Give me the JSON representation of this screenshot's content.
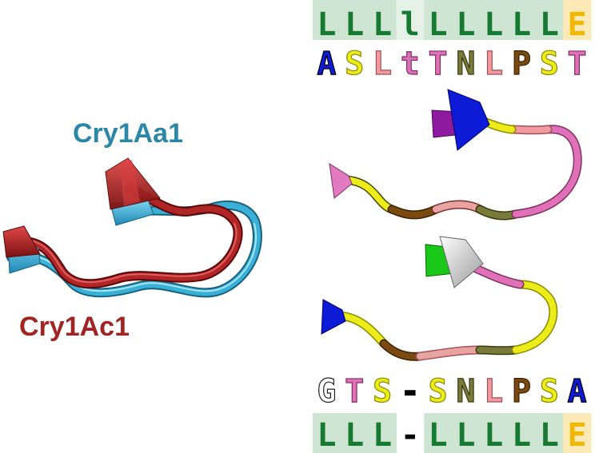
{
  "labels": {
    "structure_top": "Cry1Aa1",
    "structure_bottom": "Cry1Ac1"
  },
  "colors": {
    "cry1aa1": "#3ab0d6",
    "cry1ac1": "#b02525",
    "label_aa": "#2a87a6",
    "label_ac": "#a12424",
    "ss_bg": "#cfe5d3",
    "ss_bg_light": "#e6f2e8",
    "ss_bg_e": "#fbe9b8",
    "ss_text": "#167a30",
    "ss_text_e": "#f0b800"
  },
  "rows": {
    "ss_top": [
      {
        "ch": "L",
        "color": "#167a30",
        "bg": "#cfe5d3"
      },
      {
        "ch": "L",
        "color": "#167a30",
        "bg": "#cfe5d3"
      },
      {
        "ch": "L",
        "color": "#167a30",
        "bg": "#cfe5d3"
      },
      {
        "ch": "l",
        "color": "#167a30",
        "bg": "#e6f2e8"
      },
      {
        "ch": "L",
        "color": "#167a30",
        "bg": "#cfe5d3"
      },
      {
        "ch": "L",
        "color": "#167a30",
        "bg": "#cfe5d3"
      },
      {
        "ch": "L",
        "color": "#167a30",
        "bg": "#cfe5d3"
      },
      {
        "ch": "L",
        "color": "#167a30",
        "bg": "#cfe5d3"
      },
      {
        "ch": "L",
        "color": "#167a30",
        "bg": "#cfe5d3"
      },
      {
        "ch": "E",
        "color": "#f0b800",
        "bg": "#fbe9b8"
      }
    ],
    "seq_top": [
      {
        "ch": "A",
        "color": "#0d1ad6",
        "stroke": "#000000"
      },
      {
        "ch": "S",
        "color": "#ecec1a",
        "stroke": "#8a8a00"
      },
      {
        "ch": "L",
        "color": "#f39aa0",
        "stroke": "#a05058"
      },
      {
        "ch": "t",
        "color": "#d870b8",
        "stroke": "#803060"
      },
      {
        "ch": "T",
        "color": "#e070b8",
        "stroke": "#803060"
      },
      {
        "ch": "N",
        "color": "#7a7a3a",
        "stroke": "#3a3a10"
      },
      {
        "ch": "L",
        "color": "#f39aa0",
        "stroke": "#a05058"
      },
      {
        "ch": "P",
        "color": "#7a4a10",
        "stroke": "#3a2000"
      },
      {
        "ch": "S",
        "color": "#ecec1a",
        "stroke": "#8a8a00"
      },
      {
        "ch": "T",
        "color": "#e070b8",
        "stroke": "#803060"
      }
    ],
    "seq_bottom": [
      {
        "ch": "G",
        "color": "#ffffff",
        "stroke": "#222222"
      },
      {
        "ch": "T",
        "color": "#e070b8",
        "stroke": "#803060"
      },
      {
        "ch": "S",
        "color": "#ecec1a",
        "stroke": "#8a8a00"
      },
      {
        "ch": "-",
        "color": "#000000",
        "stroke": "#000000"
      },
      {
        "ch": "S",
        "color": "#ecec1a",
        "stroke": "#8a8a00"
      },
      {
        "ch": "N",
        "color": "#7a7a3a",
        "stroke": "#3a3a10"
      },
      {
        "ch": "L",
        "color": "#f39aa0",
        "stroke": "#a05058"
      },
      {
        "ch": "P",
        "color": "#7a4a10",
        "stroke": "#3a2000"
      },
      {
        "ch": "S",
        "color": "#ecec1a",
        "stroke": "#8a8a00"
      },
      {
        "ch": "A",
        "color": "#0d1ad6",
        "stroke": "#000000"
      }
    ],
    "ss_bottom": [
      {
        "ch": "L",
        "color": "#167a30",
        "bg": "#cfe5d3"
      },
      {
        "ch": "L",
        "color": "#167a30",
        "bg": "#cfe5d3"
      },
      {
        "ch": "L",
        "color": "#167a30",
        "bg": "#cfe5d3"
      },
      {
        "ch": "-",
        "color": "#000000",
        "bg": "none"
      },
      {
        "ch": "L",
        "color": "#167a30",
        "bg": "#cfe5d3"
      },
      {
        "ch": "L",
        "color": "#167a30",
        "bg": "#cfe5d3"
      },
      {
        "ch": "L",
        "color": "#167a30",
        "bg": "#cfe5d3"
      },
      {
        "ch": "L",
        "color": "#167a30",
        "bg": "#cfe5d3"
      },
      {
        "ch": "L",
        "color": "#167a30",
        "bg": "#cfe5d3"
      },
      {
        "ch": "E",
        "color": "#f0b800",
        "bg": "#fbe9b8"
      }
    ]
  }
}
